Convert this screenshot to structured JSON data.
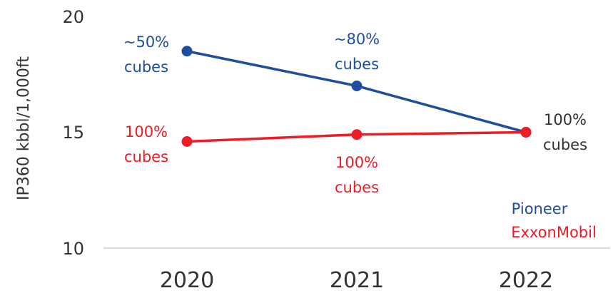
{
  "chart_data": {
    "type": "line",
    "ylabel": "IP360  kbbl/1,000ft",
    "categories": [
      "2020",
      "2021",
      "2022"
    ],
    "ylim": [
      10,
      20
    ],
    "yticks": [
      10,
      15,
      20
    ],
    "grid": false,
    "legend_position": "bottom-right",
    "series": [
      {
        "name": "Pioneer",
        "color": "#1f4e9e",
        "values": [
          18.5,
          17.0,
          15.0
        ]
      },
      {
        "name": "ExxonMobil",
        "color": "#ee1c25",
        "values": [
          14.6,
          14.9,
          15.0
        ]
      }
    ],
    "annotations": [
      {
        "lines": [
          "~50%",
          "cubes"
        ],
        "series": "Pioneer",
        "category": "2020"
      },
      {
        "lines": [
          "~80%",
          "cubes"
        ],
        "series": "Pioneer",
        "category": "2021"
      },
      {
        "lines": [
          "100%",
          "cubes"
        ],
        "series": "both",
        "category": "2022"
      },
      {
        "lines": [
          "100%",
          "cubes"
        ],
        "series": "ExxonMobil",
        "category": "2020"
      },
      {
        "lines": [
          "100%",
          "cubes"
        ],
        "series": "ExxonMobil",
        "category": "2021"
      }
    ],
    "annotation_colors": {
      "Pioneer": "#1f4e9e",
      "ExxonMobil": "#ee1c25",
      "both": "#333333"
    }
  }
}
